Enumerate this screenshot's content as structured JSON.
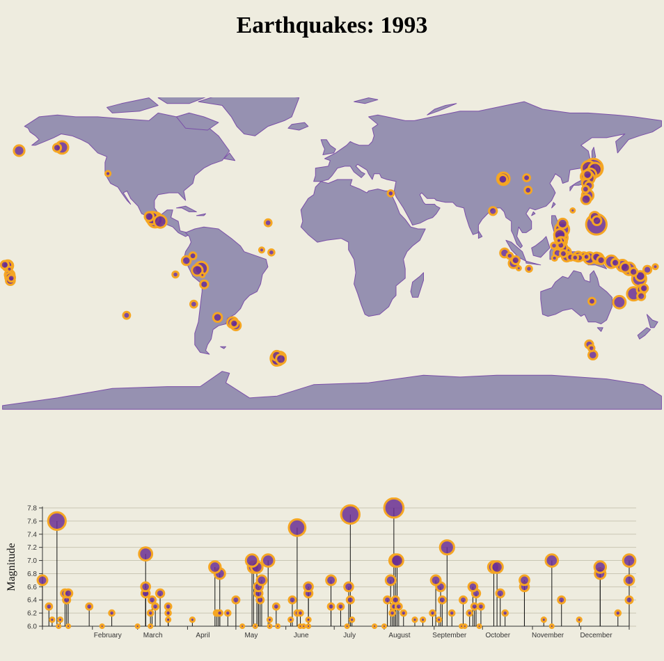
{
  "title": "Earthquakes: 1993",
  "colors": {
    "background": "#eeecdf",
    "land": "#9691b1",
    "land_stroke": "#7a4fa8",
    "quake_fill": "#6a2f93",
    "quake_ring": "#f5a623",
    "stem": "#111111",
    "grid": "#c9c6b3"
  },
  "chart_data": [
    {
      "type": "scatter",
      "subtype": "geo-bubble-map",
      "note_fields": [
        "lon",
        "lat",
        "mag"
      ],
      "points": [
        [
          -170.9,
          52.2,
          6.7
        ],
        [
          -150.2,
          53.7,
          6.4
        ],
        [
          -147.5,
          53.9,
          6.9
        ],
        [
          -122.4,
          40.1,
          6.1
        ],
        [
          -99.9,
          17.5,
          6.5
        ],
        [
          -98.2,
          16.7,
          6.9
        ],
        [
          -96.6,
          15.7,
          7.2
        ],
        [
          -93.8,
          14.9,
          6.9
        ],
        [
          -34.9,
          14.2,
          6.3
        ],
        [
          -38.4,
          -0.1,
          6.1
        ],
        [
          -33.1,
          -1.4,
          6.2
        ],
        [
          -178.8,
          -7.9,
          6.4
        ],
        [
          -177.3,
          -8.2,
          6.6
        ],
        [
          -177.1,
          -8.4,
          6.7
        ],
        [
          -176.2,
          -10.2,
          6.1
        ],
        [
          -176.1,
          -13.2,
          6.6
        ],
        [
          -175.8,
          -14.6,
          6.6
        ],
        [
          -175.7,
          -16.2,
          6.5
        ],
        [
          -175.2,
          -15.0,
          6.3
        ],
        [
          -85.5,
          -13.0,
          6.2
        ],
        [
          -79.6,
          -5.7,
          6.5
        ],
        [
          -76.0,
          -3.2,
          6.3
        ],
        [
          -73.6,
          -10.8,
          6.7
        ],
        [
          -71.4,
          -9.8,
          7.0
        ],
        [
          -70.8,
          -13.3,
          6.0
        ],
        [
          -69.8,
          -18.2,
          6.4
        ],
        [
          -75.5,
          -28.6,
          6.3
        ],
        [
          -112.2,
          -34.5,
          6.3
        ],
        [
          -62.5,
          -35.6,
          6.5
        ],
        [
          -54.3,
          -38.3,
          6.7
        ],
        [
          -52.5,
          -39.8,
          6.6
        ],
        [
          -53.5,
          -38.8,
          6.4
        ],
        [
          32.1,
          29.7,
          6.2
        ],
        [
          93.6,
          37.4,
          6.9
        ],
        [
          93.3,
          37.1,
          6.5
        ],
        [
          106.3,
          37.9,
          6.3
        ],
        [
          107.1,
          31.4,
          6.3
        ],
        [
          87.9,
          20.4,
          6.4
        ],
        [
          142.8,
          43.0,
          7.6
        ],
        [
          140.2,
          43.0,
          7.1
        ],
        [
          143.7,
          42.3,
          7.0
        ],
        [
          141.0,
          39.5,
          6.9
        ],
        [
          139.6,
          39.6,
          6.5
        ],
        [
          139.3,
          38.5,
          6.9
        ],
        [
          141.5,
          41.6,
          7.2
        ],
        [
          140.3,
          37.7,
          6.8
        ],
        [
          138.8,
          35.1,
          6.4
        ],
        [
          138.5,
          31.9,
          6.3
        ],
        [
          140.4,
          33.8,
          6.4
        ],
        [
          139.7,
          28.6,
          6.8
        ],
        [
          138.8,
          26.6,
          6.6
        ],
        [
          131.5,
          20.7,
          6.0
        ],
        [
          144.7,
          15.3,
          6.5
        ],
        [
          144.4,
          13.4,
          7.8
        ],
        [
          143.5,
          17.4,
          6.6
        ],
        [
          126.0,
          13.8,
          6.6
        ],
        [
          125.7,
          10.7,
          7.1
        ],
        [
          124.5,
          7.9,
          6.8
        ],
        [
          125.1,
          6.4,
          7.0
        ],
        [
          125.9,
          4.3,
          6.5
        ],
        [
          125.1,
          4.6,
          6.4
        ],
        [
          123.9,
          4.9,
          6.1
        ],
        [
          121.3,
          2.2,
          6.2
        ],
        [
          125.0,
          2.4,
          6.3
        ],
        [
          126.1,
          1.1,
          6.5
        ],
        [
          127.6,
          -1.3,
          6.7
        ],
        [
          126.4,
          -2.0,
          6.3
        ],
        [
          123.2,
          -1.8,
          6.4
        ],
        [
          121.6,
          -4.4,
          6.1
        ],
        [
          128.2,
          -3.6,
          6.6
        ],
        [
          130.3,
          -3.9,
          6.3
        ],
        [
          132.8,
          -4.1,
          6.2
        ],
        [
          134.5,
          -3.6,
          6.6
        ],
        [
          135.2,
          -4.2,
          6.3
        ],
        [
          137.6,
          -3.4,
          6.4
        ],
        [
          139.0,
          -3.7,
          6.2
        ],
        [
          140.7,
          -4.4,
          6.8
        ],
        [
          144.5,
          -3.8,
          6.5
        ],
        [
          145.4,
          -4.5,
          6.7
        ],
        [
          147.0,
          -5.5,
          6.4
        ],
        [
          152.6,
          -6.3,
          6.9
        ],
        [
          154.8,
          -6.8,
          6.4
        ],
        [
          158.7,
          -8.3,
          6.8
        ],
        [
          160.2,
          -9.3,
          6.6
        ],
        [
          162.3,
          -10.0,
          6.9
        ],
        [
          164.7,
          -11.6,
          6.4
        ],
        [
          176.6,
          -8.9,
          6.1
        ],
        [
          172.3,
          -10.5,
          6.4
        ],
        [
          94.3,
          -1.7,
          6.5
        ],
        [
          97.1,
          -3.2,
          6.2
        ],
        [
          100.3,
          -5.5,
          6.4
        ],
        [
          99.2,
          -7.1,
          6.6
        ],
        [
          102.0,
          -9.7,
          6.0
        ],
        [
          107.6,
          -10.0,
          6.2
        ],
        [
          168.5,
          -13.8,
          6.6
        ],
        [
          167.8,
          -15.3,
          7.1
        ],
        [
          170.4,
          -20.3,
          6.4
        ],
        [
          169.2,
          -21.0,
          6.6
        ],
        [
          164.8,
          -23.2,
          7.0
        ],
        [
          168.9,
          -24.4,
          6.4
        ],
        [
          157.0,
          -27.6,
          6.9
        ],
        [
          142.0,
          -27.1,
          6.3
        ],
        [
          140.5,
          -49.8,
          6.4
        ],
        [
          141.7,
          -51.8,
          6.2
        ],
        [
          142.5,
          -55.4,
          6.5
        ],
        [
          -30.2,
          -55.8,
          6.6
        ],
        [
          -28.4,
          -56.7,
          6.8
        ],
        [
          -29.7,
          -57.2,
          7.1
        ],
        [
          -27.9,
          -57.5,
          6.6
        ],
        [
          -30.3,
          -58.2,
          6.7
        ]
      ]
    },
    {
      "type": "scatter",
      "subtype": "lollipop",
      "ylabel": "Magnitude",
      "ylim": [
        6.0,
        7.9
      ],
      "yticks": [
        6.0,
        6.2,
        6.4,
        6.6,
        6.8,
        7.0,
        7.2,
        7.4,
        7.6,
        7.8
      ],
      "xdomain": [
        "1993-01-01",
        "1993-12-31"
      ],
      "xticks": [
        {
          "date": "1993-01-01",
          "label": ""
        },
        {
          "date": "1993-02-01",
          "label": "February"
        },
        {
          "date": "1993-03-01",
          "label": "March"
        },
        {
          "date": "1993-04-01",
          "label": "April"
        },
        {
          "date": "1993-05-01",
          "label": "May"
        },
        {
          "date": "1993-06-01",
          "label": "June"
        },
        {
          "date": "1993-07-01",
          "label": "July"
        },
        {
          "date": "1993-08-01",
          "label": "August"
        },
        {
          "date": "1993-09-01",
          "label": "September"
        },
        {
          "date": "1993-10-01",
          "label": "October"
        },
        {
          "date": "1993-11-01",
          "label": "November"
        },
        {
          "date": "1993-12-01",
          "label": "December"
        },
        {
          "date": "1993-12-31",
          "label": ""
        }
      ],
      "events": [
        [
          "1993-01-01",
          6.7
        ],
        [
          "1993-01-05",
          6.3
        ],
        [
          "1993-01-07",
          6.1
        ],
        [
          "1993-01-10",
          7.6
        ],
        [
          "1993-01-11",
          6.0
        ],
        [
          "1993-01-12",
          6.1
        ],
        [
          "1993-01-15",
          6.5
        ],
        [
          "1993-01-16",
          6.4
        ],
        [
          "1993-01-17",
          6.0
        ],
        [
          "1993-01-17",
          6.5
        ],
        [
          "1993-01-30",
          6.3
        ],
        [
          "1993-02-07",
          6.0
        ],
        [
          "1993-02-13",
          6.2
        ],
        [
          "1993-03-01",
          6.0
        ],
        [
          "1993-03-06",
          7.1
        ],
        [
          "1993-03-06",
          6.6
        ],
        [
          "1993-03-06",
          6.5
        ],
        [
          "1993-03-06",
          6.5
        ],
        [
          "1993-03-09",
          6.2
        ],
        [
          "1993-03-09",
          6.0
        ],
        [
          "1993-03-10",
          6.4
        ],
        [
          "1993-03-12",
          6.3
        ],
        [
          "1993-03-15",
          6.5
        ],
        [
          "1993-03-20",
          6.3
        ],
        [
          "1993-03-20",
          6.2
        ],
        [
          "1993-03-20",
          6.1
        ],
        [
          "1993-04-04",
          6.1
        ],
        [
          "1993-04-18",
          6.9
        ],
        [
          "1993-04-19",
          6.2
        ],
        [
          "1993-04-20",
          6.2
        ],
        [
          "1993-04-21",
          6.8
        ],
        [
          "1993-04-21",
          6.2
        ],
        [
          "1993-04-26",
          6.2
        ],
        [
          "1993-05-01",
          6.4
        ],
        [
          "1993-05-05",
          6.0
        ],
        [
          "1993-05-11",
          7.0
        ],
        [
          "1993-05-12",
          6.9
        ],
        [
          "1993-05-13",
          6.0
        ],
        [
          "1993-05-14",
          6.9
        ],
        [
          "1993-05-15",
          6.6
        ],
        [
          "1993-05-15",
          6.5
        ],
        [
          "1993-05-16",
          6.4
        ],
        [
          "1993-05-17",
          6.7
        ],
        [
          "1993-05-21",
          7.0
        ],
        [
          "1993-05-22",
          6.1
        ],
        [
          "1993-05-22",
          6.0
        ],
        [
          "1993-05-26",
          6.3
        ],
        [
          "1993-05-27",
          6.0
        ],
        [
          "1993-06-04",
          6.1
        ],
        [
          "1993-06-05",
          6.4
        ],
        [
          "1993-06-08",
          7.5
        ],
        [
          "1993-06-08",
          6.2
        ],
        [
          "1993-06-10",
          6.0
        ],
        [
          "1993-06-10",
          6.2
        ],
        [
          "1993-06-12",
          6.0
        ],
        [
          "1993-06-15",
          6.5
        ],
        [
          "1993-06-15",
          6.6
        ],
        [
          "1993-06-15",
          6.1
        ],
        [
          "1993-06-15",
          6.0
        ],
        [
          "1993-06-29",
          6.7
        ],
        [
          "1993-06-29",
          6.3
        ],
        [
          "1993-07-05",
          6.3
        ],
        [
          "1993-07-09",
          6.0
        ],
        [
          "1993-07-10",
          6.6
        ],
        [
          "1993-07-11",
          7.7
        ],
        [
          "1993-07-11",
          6.4
        ],
        [
          "1993-07-12",
          6.1
        ],
        [
          "1993-07-26",
          6.0
        ],
        [
          "1993-08-01",
          6.0
        ],
        [
          "1993-08-03",
          6.4
        ],
        [
          "1993-08-05",
          6.7
        ],
        [
          "1993-08-06",
          6.2
        ],
        [
          "1993-08-07",
          7.8
        ],
        [
          "1993-08-07",
          6.3
        ],
        [
          "1993-08-08",
          7.0
        ],
        [
          "1993-08-08",
          6.4
        ],
        [
          "1993-08-09",
          7.0
        ],
        [
          "1993-08-10",
          6.3
        ],
        [
          "1993-08-13",
          6.2
        ],
        [
          "1993-08-20",
          6.1
        ],
        [
          "1993-08-25",
          6.1
        ],
        [
          "1993-08-31",
          6.2
        ],
        [
          "1993-09-02",
          6.7
        ],
        [
          "1993-09-04",
          6.1
        ],
        [
          "1993-09-05",
          6.6
        ],
        [
          "1993-09-06",
          6.4
        ],
        [
          "1993-09-09",
          7.2
        ],
        [
          "1993-09-12",
          6.2
        ],
        [
          "1993-09-19",
          6.4
        ],
        [
          "1993-09-18",
          6.0
        ],
        [
          "1993-09-20",
          6.0
        ],
        [
          "1993-09-23",
          6.2
        ],
        [
          "1993-09-25",
          6.6
        ],
        [
          "1993-09-26",
          6.3
        ],
        [
          "1993-09-27",
          6.5
        ],
        [
          "1993-09-29",
          6.0
        ],
        [
          "1993-09-30",
          6.3
        ],
        [
          "1993-10-08",
          6.9
        ],
        [
          "1993-10-10",
          6.9
        ],
        [
          "1993-10-12",
          6.5
        ],
        [
          "1993-10-15",
          6.2
        ],
        [
          "1993-10-27",
          6.7
        ],
        [
          "1993-10-27",
          6.6
        ],
        [
          "1993-11-08",
          6.1
        ],
        [
          "1993-11-13",
          7.0
        ],
        [
          "1993-11-13",
          6.0
        ],
        [
          "1993-11-19",
          6.4
        ],
        [
          "1993-11-30",
          6.1
        ],
        [
          "1993-12-13",
          6.9
        ],
        [
          "1993-12-13",
          6.8
        ],
        [
          "1993-12-24",
          6.2
        ],
        [
          "1993-12-31",
          7.0
        ],
        [
          "1993-12-31",
          6.7
        ],
        [
          "1993-12-31",
          6.4
        ]
      ]
    }
  ]
}
